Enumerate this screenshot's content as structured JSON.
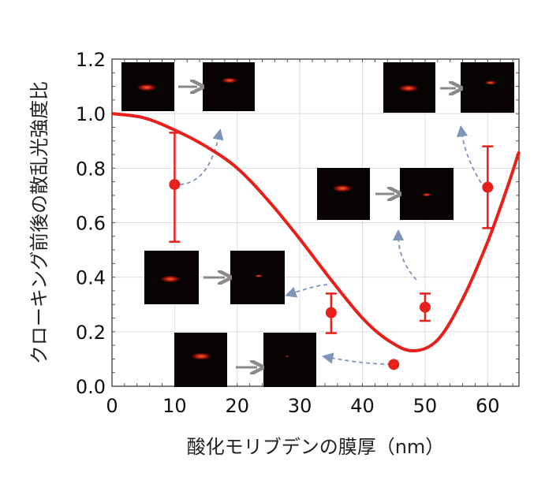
{
  "chart_data": {
    "type": "scatter",
    "title": "",
    "xlabel": "酸化モリブデンの膜厚（nm）",
    "ylabel": "クローキング前後の散乱光強度比",
    "xlim": [
      0,
      65
    ],
    "ylim": [
      0,
      1.2
    ],
    "xticks": [
      "0",
      "10",
      "20",
      "30",
      "40",
      "50",
      "60"
    ],
    "yticks": [
      "0.0",
      "0.2",
      "0.4",
      "0.6",
      "0.8",
      "1.0",
      "1.2"
    ],
    "grid": true,
    "points": [
      {
        "x": 10,
        "y": 0.74,
        "err_low": 0.53,
        "err_high": 0.93
      },
      {
        "x": 35,
        "y": 0.27,
        "err_low": 0.195,
        "err_high": 0.34
      },
      {
        "x": 45,
        "y": 0.08
      },
      {
        "x": 50,
        "y": 0.29,
        "err_low": 0.24,
        "err_high": 0.34
      },
      {
        "x": 60,
        "y": 0.73,
        "err_low": 0.58,
        "err_high": 0.88
      }
    ],
    "curve": {
      "x": [
        0,
        5,
        10,
        15,
        20,
        25,
        30,
        35,
        40,
        44,
        48,
        52,
        56,
        60,
        63,
        65
      ],
      "y": [
        1.0,
        0.985,
        0.94,
        0.88,
        0.8,
        0.68,
        0.54,
        0.39,
        0.25,
        0.17,
        0.13,
        0.17,
        0.32,
        0.53,
        0.72,
        0.86
      ]
    },
    "colors": {
      "data": "#e8201c",
      "arrow": "#7f95b8",
      "inset_arrow": "#8a8a8a"
    }
  }
}
